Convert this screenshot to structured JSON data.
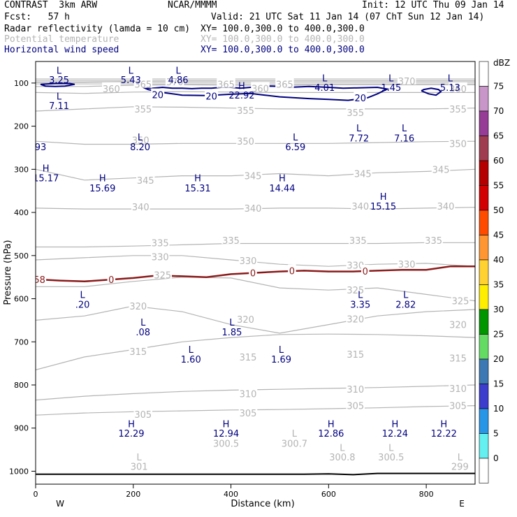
{
  "header": {
    "model": "CONTRAST  3km ARW",
    "center": "NCAR/MMMM",
    "init": "Init: 12 UTC Thu 09 Jan 14",
    "fcst": "Fcst:   57 h",
    "valid": "Valid: 21 UTC Sat 11 Jan 14 (07 ChT Sun 12 Jan 14)",
    "fields": [
      {
        "name": "Radar reflectivity (lamda = 10 cm)",
        "xy": "XY= 100.0,300.0 to 400.0,300.0",
        "color": "#000000"
      },
      {
        "name": "Potential temperature",
        "xy": "XY= 100.0,300.0 to 400.0,300.0",
        "color": "#b4b4b4"
      },
      {
        "name": "Horizontal wind speed",
        "xy": "XY= 100.0,300.0 to 400.0,300.0",
        "color": "#000080"
      }
    ]
  },
  "chart_data": {
    "type": "cross-section",
    "xlabel": "Distance (km)",
    "ylabel": "Pressure (hPa)",
    "xlim": [
      0,
      900
    ],
    "ylim": [
      1030,
      50
    ],
    "xticks": [
      0,
      200,
      400,
      600,
      800
    ],
    "yticks": [
      100,
      200,
      300,
      400,
      500,
      600,
      700,
      800,
      900,
      1000
    ],
    "west_label": "W",
    "east_label": "E",
    "colorbar": {
      "unit": "dBZ",
      "levels": [
        "75",
        "70",
        "65",
        "60",
        "55",
        "50",
        "45",
        "40",
        "35",
        "30",
        "25",
        "20",
        "15",
        "10",
        "5",
        "0"
      ],
      "colors": [
        "#ffffff",
        "#c896c8",
        "#963c96",
        "#a03c50",
        "#b40000",
        "#d20000",
        "#ff4b00",
        "#ff9632",
        "#ffd232",
        "#ffee00",
        "#009600",
        "#64dc64",
        "#3c78b4",
        "#3c3ccd",
        "#2896e6",
        "#64f0f0",
        "#ffffff"
      ]
    },
    "theta_isentropes": [
      {
        "label": "305",
        "p": [
          870,
          865,
          862,
          860,
          858,
          857,
          855,
          853,
          850,
          848
        ]
      },
      {
        "label": "310",
        "p": [
          835,
          826,
          820,
          815,
          812,
          810,
          808,
          806,
          803,
          800
        ]
      },
      {
        "label": "315",
        "p": [
          765,
          735,
          718,
          700,
          690,
          683,
          682,
          683,
          686,
          690
        ]
      },
      {
        "label": "320",
        "p": [
          650,
          640,
          617,
          630,
          660,
          680,
          660,
          640,
          630,
          625
        ]
      },
      {
        "label": "325",
        "p": [
          572,
          572,
          560,
          550,
          552,
          575,
          580,
          575,
          590,
          605
        ]
      },
      {
        "label": "330",
        "p": [
          510,
          505,
          500,
          500,
          510,
          520,
          525,
          520,
          518,
          525
        ]
      },
      {
        "label": "335",
        "p": [
          480,
          480,
          478,
          475,
          472,
          472,
          472,
          472,
          470,
          470
        ]
      },
      {
        "label": "340",
        "p": [
          390,
          392,
          392,
          392,
          392,
          390,
          390,
          392,
          390,
          388
        ]
      },
      {
        "label": "345",
        "p": [
          300,
          325,
          320,
          315,
          315,
          310,
          315,
          308,
          305,
          300
        ]
      },
      {
        "label": "350",
        "p": [
          235,
          242,
          242,
          240,
          240,
          240,
          240,
          238,
          236,
          235
        ]
      },
      {
        "label": "355",
        "p": [
          165,
          160,
          155,
          156,
          158,
          160,
          160,
          160,
          160,
          158
        ]
      },
      {
        "label": "360",
        "p": [
          122,
          124,
          121,
          120,
          121,
          122,
          122,
          122,
          122,
          122
        ]
      },
      {
        "label": "365",
        "p": [
          108,
          108,
          105,
          104,
          105,
          105,
          104,
          104,
          104,
          104
        ]
      },
      {
        "label": "370",
        "p": [
          98,
          98,
          96,
          95,
          95,
          95,
          95,
          95,
          95,
          95
        ]
      }
    ],
    "theta_labels": [
      {
        "text": "360",
        "x": 155,
        "p": 113
      },
      {
        "text": "365",
        "x": 220,
        "p": 103
      },
      {
        "text": "370",
        "x": 285,
        "p": 97
      },
      {
        "text": "365",
        "x": 390,
        "p": 103
      },
      {
        "text": "360",
        "x": 460,
        "p": 112
      },
      {
        "text": "365",
        "x": 510,
        "p": 103
      },
      {
        "text": "370",
        "x": 760,
        "p": 95
      },
      {
        "text": "360",
        "x": 865,
        "p": 113
      },
      {
        "text": "355",
        "x": 220,
        "p": 160
      },
      {
        "text": "355",
        "x": 430,
        "p": 163
      },
      {
        "text": "355",
        "x": 655,
        "p": 168
      },
      {
        "text": "355",
        "x": 865,
        "p": 160
      },
      {
        "text": "350",
        "x": 215,
        "p": 232
      },
      {
        "text": "350",
        "x": 430,
        "p": 235
      },
      {
        "text": "350",
        "x": 865,
        "p": 240
      },
      {
        "text": "345",
        "x": 225,
        "p": 325
      },
      {
        "text": "345",
        "x": 445,
        "p": 315
      },
      {
        "text": "345",
        "x": 670,
        "p": 310
      },
      {
        "text": "345",
        "x": 830,
        "p": 300
      },
      {
        "text": "340",
        "x": 215,
        "p": 387
      },
      {
        "text": "340",
        "x": 445,
        "p": 390
      },
      {
        "text": "340",
        "x": 665,
        "p": 385
      },
      {
        "text": "340",
        "x": 840,
        "p": 385
      },
      {
        "text": "335",
        "x": 255,
        "p": 470
      },
      {
        "text": "335",
        "x": 400,
        "p": 465
      },
      {
        "text": "335",
        "x": 660,
        "p": 465
      },
      {
        "text": "335",
        "x": 815,
        "p": 465
      },
      {
        "text": "330",
        "x": 255,
        "p": 503
      },
      {
        "text": "330",
        "x": 435,
        "p": 512
      },
      {
        "text": "330",
        "x": 655,
        "p": 522
      },
      {
        "text": "330",
        "x": 760,
        "p": 520
      },
      {
        "text": "325",
        "x": 260,
        "p": 545
      },
      {
        "text": "325",
        "x": 655,
        "p": 580
      },
      {
        "text": "325",
        "x": 870,
        "p": 605
      },
      {
        "text": "320",
        "x": 210,
        "p": 617
      },
      {
        "text": "320",
        "x": 430,
        "p": 648
      },
      {
        "text": "320",
        "x": 655,
        "p": 647
      },
      {
        "text": "320",
        "x": 865,
        "p": 660
      },
      {
        "text": "315",
        "x": 210,
        "p": 722
      },
      {
        "text": "315",
        "x": 435,
        "p": 735
      },
      {
        "text": "315",
        "x": 655,
        "p": 729
      },
      {
        "text": "315",
        "x": 865,
        "p": 738
      },
      {
        "text": "310",
        "x": 435,
        "p": 820
      },
      {
        "text": "310",
        "x": 655,
        "p": 810
      },
      {
        "text": "310",
        "x": 865,
        "p": 808
      },
      {
        "text": "305",
        "x": 220,
        "p": 868
      },
      {
        "text": "305",
        "x": 435,
        "p": 865
      },
      {
        "text": "305",
        "x": 655,
        "p": 848
      },
      {
        "text": "305",
        "x": 865,
        "p": 848
      }
    ],
    "theta_extrema": [
      {
        "text": "L",
        "x": 212,
        "p": 967
      },
      {
        "text": "301",
        "x": 212,
        "p": 989
      },
      {
        "text": "300.5",
        "x": 390,
        "p": 935
      },
      {
        "text": "L",
        "x": 530,
        "p": 912
      },
      {
        "text": "300.7",
        "x": 530,
        "p": 935
      },
      {
        "text": "L",
        "x": 628,
        "p": 945
      },
      {
        "text": "300.8",
        "x": 628,
        "p": 967
      },
      {
        "text": "L",
        "x": 728,
        "p": 945
      },
      {
        "text": "300.5",
        "x": 728,
        "p": 967
      },
      {
        "text": "L",
        "x": 869,
        "p": 967
      },
      {
        "text": "299",
        "x": 869,
        "p": 989
      }
    ],
    "freezing_line": {
      "label": "0",
      "x": [
        0,
        50,
        100,
        150,
        200,
        250,
        300,
        350,
        400,
        450,
        500,
        550,
        600,
        650,
        700,
        750,
        800,
        850,
        900
      ],
      "p": [
        555,
        558,
        560,
        556,
        552,
        546,
        548,
        550,
        543,
        540,
        537,
        535,
        537,
        537,
        535,
        533,
        533,
        525,
        525
      ]
    },
    "freezing_labels": [
      {
        "text": "0",
        "x": 155,
        "p": 555
      },
      {
        "text": "0",
        "x": 445,
        "p": 540
      },
      {
        "text": "0",
        "x": 525,
        "p": 535
      },
      {
        "text": "0",
        "x": 675,
        "p": 536
      },
      {
        "text": "58",
        "x": 8,
        "p": 555
      }
    ],
    "wind_speed_20_contours": [
      {
        "x": [
          10,
          20,
          40,
          60,
          80,
          70,
          40,
          10
        ],
        "p": [
          103,
          107,
          108,
          107,
          103,
          101,
          101,
          103
        ]
      },
      {
        "x": [
          230,
          260,
          300,
          350,
          400,
          440,
          470,
          500,
          530,
          560,
          600,
          640,
          680,
          700,
          720,
          700,
          660,
          630,
          600,
          560,
          520,
          500,
          480,
          440,
          420,
          400,
          380,
          360,
          340,
          320,
          300,
          280,
          260,
          240,
          220,
          230
        ],
        "p": [
          115,
          122,
          128,
          129,
          126,
          124,
          128,
          132,
          134,
          136,
          138,
          140,
          134,
          125,
          114,
          110,
          111,
          112,
          110,
          108,
          110,
          108,
          107,
          110,
          112,
          110,
          110,
          112,
          112,
          113,
          112,
          112,
          110,
          112,
          110,
          115
        ]
      },
      {
        "x": [
          790,
          805,
          820,
          830,
          825,
          810,
          795,
          790
        ],
        "p": [
          118,
          125,
          128,
          120,
          115,
          112,
          115,
          118
        ]
      }
    ],
    "wind_contour_labels": [
      {
        "text": "20",
        "x": 250,
        "p": 127
      },
      {
        "text": "20",
        "x": 360,
        "p": 130
      },
      {
        "text": "20",
        "x": 665,
        "p": 134
      }
    ],
    "wind_extrema": [
      {
        "text": "L",
        "x": 48,
        "p": 70
      },
      {
        "text": "3.25",
        "x": 48,
        "p": 92
      },
      {
        "text": "L",
        "x": 195,
        "p": 70
      },
      {
        "text": "5.43",
        "x": 195,
        "p": 92
      },
      {
        "text": "L",
        "x": 292,
        "p": 70
      },
      {
        "text": "4.86",
        "x": 292,
        "p": 92
      },
      {
        "text": "L",
        "x": 592,
        "p": 88
      },
      {
        "text": "4.01",
        "x": 592,
        "p": 110
      },
      {
        "text": "L",
        "x": 728,
        "p": 88
      },
      {
        "text": "1.45",
        "x": 728,
        "p": 110
      },
      {
        "text": "L",
        "x": 849,
        "p": 88
      },
      {
        "text": "5.13",
        "x": 849,
        "p": 110
      },
      {
        "text": "L",
        "x": 48,
        "p": 130
      },
      {
        "text": "7.11",
        "x": 48,
        "p": 152
      },
      {
        "text": "H",
        "x": 422,
        "p": 106
      },
      {
        "text": "22.92",
        "x": 422,
        "p": 128
      },
      {
        "text": "L",
        "x": 214,
        "p": 225
      },
      {
        "text": "8.20",
        "x": 214,
        "p": 248
      },
      {
        "text": "L",
        "x": 532,
        "p": 225
      },
      {
        "text": "6.59",
        "x": 532,
        "p": 248
      },
      {
        "text": "L",
        "x": 662,
        "p": 204
      },
      {
        "text": "7.72",
        "x": 662,
        "p": 227
      },
      {
        "text": "L",
        "x": 755,
        "p": 204
      },
      {
        "text": "7.16",
        "x": 755,
        "p": 227
      },
      {
        "text": "93",
        "x": 10,
        "p": 248
      },
      {
        "text": "H",
        "x": 21,
        "p": 297
      },
      {
        "text": "15.17",
        "x": 21,
        "p": 320
      },
      {
        "text": "H",
        "x": 137,
        "p": 320
      },
      {
        "text": "15.69",
        "x": 137,
        "p": 343
      },
      {
        "text": "H",
        "x": 332,
        "p": 320
      },
      {
        "text": "15.31",
        "x": 332,
        "p": 343
      },
      {
        "text": "H",
        "x": 505,
        "p": 320
      },
      {
        "text": "14.44",
        "x": 505,
        "p": 343
      },
      {
        "text": "H",
        "x": 712,
        "p": 363
      },
      {
        "text": "15.15",
        "x": 712,
        "p": 385
      },
      {
        "text": "L",
        "x": 96,
        "p": 590
      },
      {
        "text": ".20",
        "x": 96,
        "p": 613
      },
      {
        "text": "L",
        "x": 220,
        "p": 654
      },
      {
        "text": ".08",
        "x": 220,
        "p": 677
      },
      {
        "text": "L",
        "x": 402,
        "p": 654
      },
      {
        "text": "1.85",
        "x": 402,
        "p": 677
      },
      {
        "text": "L",
        "x": 318,
        "p": 717
      },
      {
        "text": "1.60",
        "x": 318,
        "p": 740
      },
      {
        "text": "L",
        "x": 503,
        "p": 717
      },
      {
        "text": "1.69",
        "x": 503,
        "p": 740
      },
      {
        "text": "L",
        "x": 665,
        "p": 590
      },
      {
        "text": "3.35",
        "x": 665,
        "p": 613
      },
      {
        "text": "L",
        "x": 758,
        "p": 590
      },
      {
        "text": "2.82",
        "x": 758,
        "p": 613
      },
      {
        "text": "H",
        "x": 196,
        "p": 890
      },
      {
        "text": "12.29",
        "x": 196,
        "p": 912
      },
      {
        "text": "H",
        "x": 390,
        "p": 890
      },
      {
        "text": "12.94",
        "x": 390,
        "p": 912
      },
      {
        "text": "H",
        "x": 605,
        "p": 890
      },
      {
        "text": "12.86",
        "x": 605,
        "p": 912
      },
      {
        "text": "H",
        "x": 736,
        "p": 890
      },
      {
        "text": "12.24",
        "x": 736,
        "p": 912
      },
      {
        "text": "H",
        "x": 836,
        "p": 890
      },
      {
        "text": "12.22",
        "x": 836,
        "p": 912
      }
    ],
    "terrain": {
      "x": [
        0,
        500,
        550,
        600,
        650,
        700,
        900
      ],
      "p": [
        1007,
        1007,
        1007,
        1006,
        1008,
        1005,
        1005
      ]
    }
  }
}
